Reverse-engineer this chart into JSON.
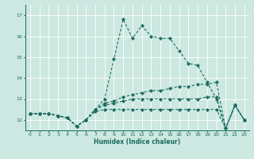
{
  "xlabel": "Humidex (Indice chaleur)",
  "xlim": [
    -0.5,
    23.5
  ],
  "ylim": [
    11.5,
    17.5
  ],
  "yticks": [
    12,
    13,
    14,
    15,
    16,
    17
  ],
  "xticks": [
    0,
    1,
    2,
    3,
    4,
    5,
    6,
    7,
    8,
    9,
    10,
    11,
    12,
    13,
    14,
    15,
    16,
    17,
    18,
    19,
    20,
    21,
    22,
    23
  ],
  "bg_color": "#cce8e0",
  "line_color": "#1a6b60",
  "grid_color": "#b0d8ce",
  "lines": [
    {
      "x": [
        0,
        1,
        2,
        3,
        4,
        5,
        6,
        7,
        8,
        9,
        10,
        11,
        12,
        13,
        14,
        15,
        16,
        17,
        18,
        19,
        20,
        21,
        22,
        23
      ],
      "y": [
        12.3,
        12.3,
        12.3,
        12.2,
        12.1,
        11.7,
        12.0,
        12.5,
        13.0,
        14.9,
        16.8,
        15.9,
        16.5,
        16.0,
        15.9,
        15.9,
        15.3,
        14.7,
        14.6,
        13.8,
        13.0,
        11.6,
        12.7,
        12.0
      ]
    },
    {
      "x": [
        0,
        1,
        2,
        3,
        4,
        5,
        6,
        7,
        8,
        9,
        10,
        11,
        12,
        13,
        14,
        15,
        16,
        17,
        18,
        19,
        20,
        21,
        22,
        23
      ],
      "y": [
        12.3,
        12.3,
        12.3,
        12.2,
        12.1,
        11.7,
        12.0,
        12.5,
        12.8,
        12.9,
        13.1,
        13.2,
        13.3,
        13.4,
        13.4,
        13.5,
        13.6,
        13.6,
        13.7,
        13.7,
        13.8,
        11.6,
        12.7,
        12.0
      ]
    },
    {
      "x": [
        0,
        1,
        2,
        3,
        4,
        5,
        6,
        7,
        8,
        9,
        10,
        11,
        12,
        13,
        14,
        15,
        16,
        17,
        18,
        19,
        20,
        21,
        22,
        23
      ],
      "y": [
        12.3,
        12.3,
        12.3,
        12.2,
        12.1,
        11.7,
        12.0,
        12.5,
        12.7,
        12.8,
        12.9,
        13.0,
        13.0,
        13.0,
        13.0,
        13.0,
        13.0,
        13.0,
        13.0,
        13.1,
        13.1,
        11.6,
        12.7,
        12.0
      ]
    },
    {
      "x": [
        0,
        1,
        2,
        3,
        4,
        5,
        6,
        7,
        8,
        9,
        10,
        11,
        12,
        13,
        14,
        15,
        16,
        17,
        18,
        19,
        20,
        21,
        22,
        23
      ],
      "y": [
        12.3,
        12.3,
        12.3,
        12.2,
        12.1,
        11.7,
        12.0,
        12.4,
        12.5,
        12.5,
        12.5,
        12.5,
        12.5,
        12.5,
        12.5,
        12.5,
        12.5,
        12.5,
        12.5,
        12.5,
        12.5,
        11.6,
        12.7,
        12.0
      ]
    }
  ]
}
